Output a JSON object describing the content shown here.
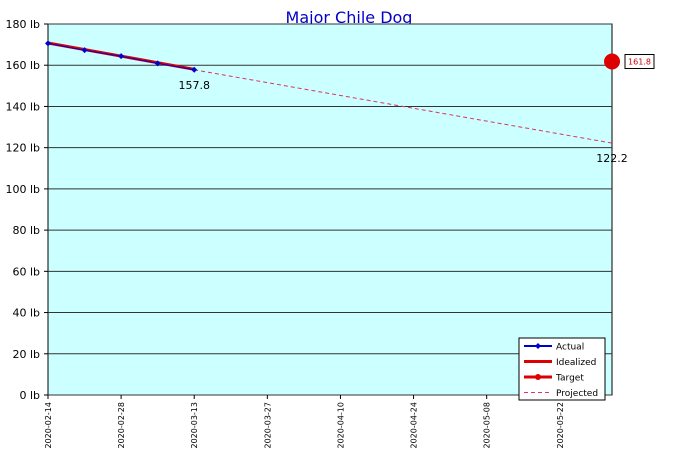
{
  "chart_data": {
    "type": "line",
    "title": "Major Chile Dog",
    "xlabel": "",
    "ylabel": "",
    "y_unit_suffix": " lb",
    "ylim": [
      0,
      180
    ],
    "y_ticks": [
      0,
      20,
      40,
      60,
      80,
      100,
      120,
      140,
      160,
      180
    ],
    "y_tick_labels": [
      "0 lb",
      "20 lb",
      "40 lb",
      "60 lb",
      "80 lb",
      "100 lb",
      "120 lb",
      "140 lb",
      "160 lb",
      "180 lb"
    ],
    "xlim": [
      "2020-02-14",
      "2020-06-01"
    ],
    "x_ticks": [
      "2020-02-14",
      "2020-02-28",
      "2020-03-13",
      "2020-03-27",
      "2020-04-10",
      "2020-04-24",
      "2020-05-08",
      "2020-05-22"
    ],
    "grid": "horizontal",
    "plot_background": "#ccffff",
    "legend_position": "bottom-right",
    "series": [
      {
        "name": "Actual",
        "color": "#0000cc",
        "x": [
          "2020-02-14",
          "2020-02-21",
          "2020-02-28",
          "2020-03-06",
          "2020-03-13"
        ],
        "y": [
          170.6,
          167.3,
          164.4,
          160.9,
          157.8
        ]
      },
      {
        "name": "Idealized",
        "color": "#dd0000",
        "x": [
          "2020-02-14",
          "2020-03-13"
        ],
        "y": [
          170.8,
          158.0
        ]
      },
      {
        "name": "Target",
        "color": "#dd0000",
        "x": [
          "2020-06-01"
        ],
        "y": [
          161.8
        ]
      },
      {
        "name": "Projected",
        "color": "#dd3366",
        "x": [
          "2020-03-13",
          "2020-06-01"
        ],
        "y": [
          157.8,
          122.2
        ]
      }
    ],
    "annotations": [
      {
        "text": "157.8",
        "x": "2020-03-13",
        "y": 157.8
      },
      {
        "text": "122.2",
        "x": "2020-06-01",
        "y": 122.2
      },
      {
        "text": "161.8",
        "x": "2020-06-01",
        "y": 161.8,
        "boxed": true
      }
    ]
  }
}
